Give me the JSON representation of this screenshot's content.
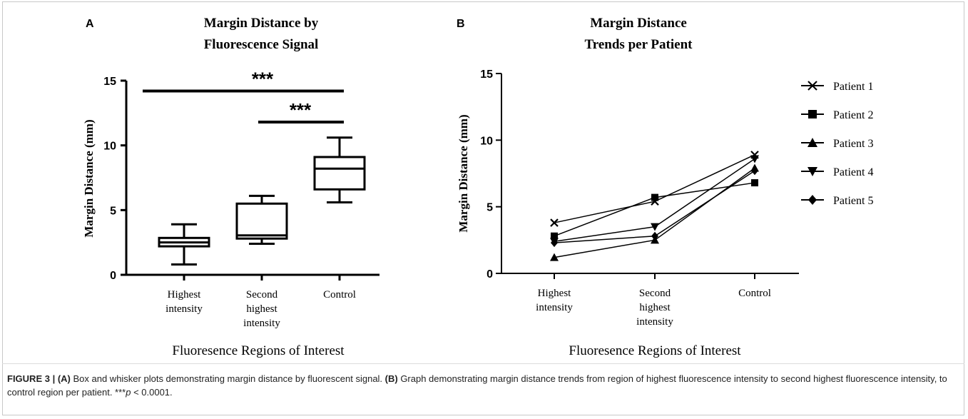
{
  "panel_a": {
    "letter": "A",
    "title_line1": "Margin Distance by",
    "title_line2": "Fluorescence Signal",
    "ylabel": "Margin Distance (mm)",
    "xlabel": "Fluoresence Regions of Interest",
    "sig_marker": "***",
    "cat_lines": [
      [
        "Highest",
        "intensity"
      ],
      [
        "Second",
        "highest",
        "intensity"
      ],
      [
        "Control"
      ]
    ]
  },
  "panel_b": {
    "letter": "B",
    "title_line1": "Margin Distance",
    "title_line2": "Trends per Patient",
    "ylabel": "Margin Distance (mm)",
    "xlabel": "Fluoresence Regions of Interest",
    "cat_lines": [
      [
        "Highest",
        "intensity"
      ],
      [
        "Second",
        "highest",
        "intensity"
      ],
      [
        "Control"
      ]
    ]
  },
  "caption": {
    "label": "FIGURE 3 |",
    "a_tag": "(A)",
    "a_text": " Box and whisker plots demonstrating margin distance by fluorescent signal. ",
    "b_tag": "(B)",
    "b_text": " Graph demonstrating margin distance trends from region of highest fluorescence intensity to second highest fluorescence intensity, to control region per patient. ***",
    "p_italic": "p",
    "p_rest": " < 0.0001."
  },
  "chart_data": [
    {
      "type": "box",
      "categories": [
        "Highest intensity",
        "Second highest intensity",
        "Control"
      ],
      "boxes": [
        {
          "min": 0.8,
          "q1": 2.2,
          "median": 2.5,
          "q3": 2.85,
          "max": 3.9
        },
        {
          "min": 2.4,
          "q1": 2.8,
          "median": 3.05,
          "q3": 5.5,
          "max": 6.1
        },
        {
          "min": 5.6,
          "q1": 6.6,
          "median": 8.2,
          "q3": 9.1,
          "max": 10.6
        }
      ],
      "ylim": [
        0,
        15
      ],
      "yticks": [
        0,
        5,
        10,
        15
      ],
      "significance": [
        {
          "from": 0,
          "to": 2,
          "label": "***",
          "y": 14.2
        },
        {
          "from": 1,
          "to": 2,
          "label": "***",
          "y": 11.8
        }
      ]
    },
    {
      "type": "line",
      "categories": [
        "Highest intensity",
        "Second highest intensity",
        "Control"
      ],
      "ylim": [
        0,
        15
      ],
      "yticks": [
        0,
        5,
        10,
        15
      ],
      "series": [
        {
          "name": "Patient 1",
          "marker": "x",
          "values": [
            3.8,
            5.4,
            8.9
          ]
        },
        {
          "name": "Patient 2",
          "marker": "square",
          "values": [
            2.8,
            5.7,
            6.8
          ]
        },
        {
          "name": "Patient 3",
          "marker": "triangle-up",
          "values": [
            1.2,
            2.5,
            7.9
          ]
        },
        {
          "name": "Patient 4",
          "marker": "triangle-down",
          "values": [
            2.4,
            3.5,
            8.6
          ]
        },
        {
          "name": "Patient 5",
          "marker": "diamond",
          "values": [
            2.3,
            2.8,
            7.7
          ]
        }
      ]
    }
  ]
}
